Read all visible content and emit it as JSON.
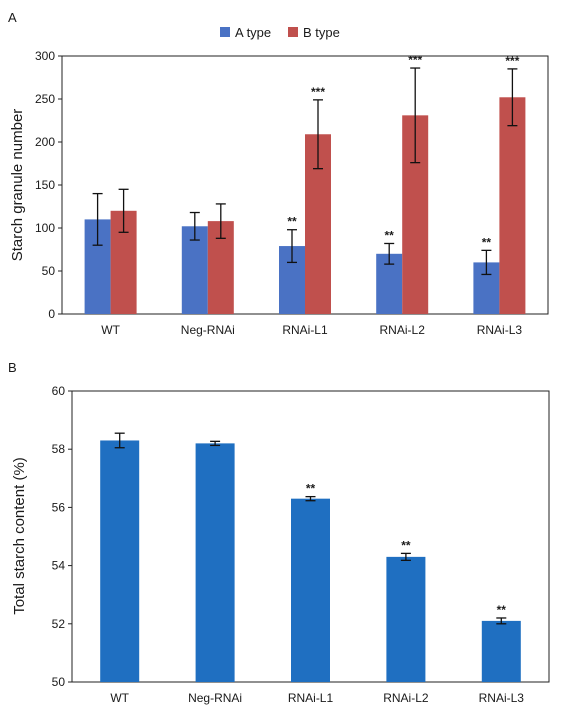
{
  "chart_data": [
    {
      "type": "bar",
      "panel_label": "A",
      "categories": [
        "WT",
        "Neg-RNAi",
        "RNAi-L1",
        "RNAi-L2",
        "RNAi-L3"
      ],
      "ylabel": "Starch granule number",
      "xlabel": "",
      "ylim": [
        0,
        300
      ],
      "yticks": [
        0,
        50,
        100,
        150,
        200,
        250,
        300
      ],
      "legend_position": "top-center",
      "series": [
        {
          "name": "A type",
          "color": "#4a72c4",
          "values": [
            110,
            102,
            79,
            70,
            60
          ],
          "errors": [
            30,
            16,
            19,
            12,
            14
          ],
          "significance": [
            "",
            "",
            "**",
            "**",
            "**"
          ]
        },
        {
          "name": "B type",
          "color": "#c0504d",
          "values": [
            120,
            108,
            209,
            231,
            252
          ],
          "errors": [
            25,
            20,
            40,
            55,
            33
          ],
          "significance": [
            "",
            "",
            "***",
            "***",
            "***"
          ]
        }
      ]
    },
    {
      "type": "bar",
      "panel_label": "B",
      "categories": [
        "WT",
        "Neg-RNAi",
        "RNAi-L1",
        "RNAi-L2",
        "RNAi-L3"
      ],
      "ylabel": "Total starch content (%)",
      "xlabel": "",
      "ylim": [
        50,
        60
      ],
      "yticks": [
        50,
        52,
        54,
        56,
        58,
        60
      ],
      "series": [
        {
          "name": "",
          "color": "#1f6fc1",
          "values": [
            58.3,
            58.2,
            56.3,
            54.3,
            52.1
          ],
          "errors": [
            0.25,
            0.07,
            0.07,
            0.12,
            0.1
          ],
          "significance": [
            "",
            "",
            "**",
            "**",
            "**"
          ]
        }
      ]
    }
  ]
}
